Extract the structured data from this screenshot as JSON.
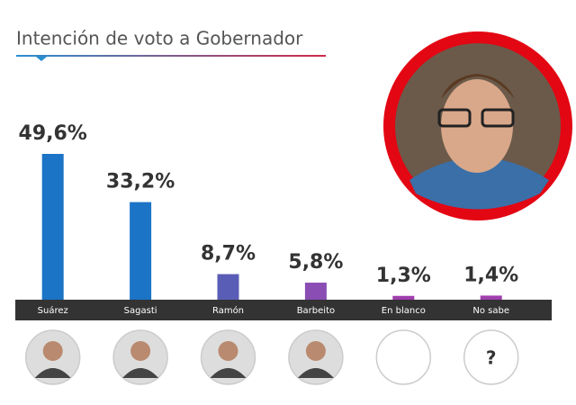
{
  "chart_data": {
    "type": "bar",
    "title": "Intención de voto a Gobernador",
    "categories": [
      "Suárez",
      "Sagasti",
      "Ramón",
      "Barbeito",
      "En blanco",
      "No sabe"
    ],
    "values": [
      49.6,
      33.2,
      8.7,
      5.8,
      1.3,
      1.4
    ],
    "value_labels": [
      "49,6%",
      "33,2%",
      "8,7%",
      "5,8%",
      "1,3%",
      "1,4%"
    ],
    "colors": [
      "#1c74c6",
      "#1c74c6",
      "#5a5db6",
      "#8a4db4",
      "#a13eae",
      "#a13eae"
    ],
    "unknown_label": "?"
  }
}
